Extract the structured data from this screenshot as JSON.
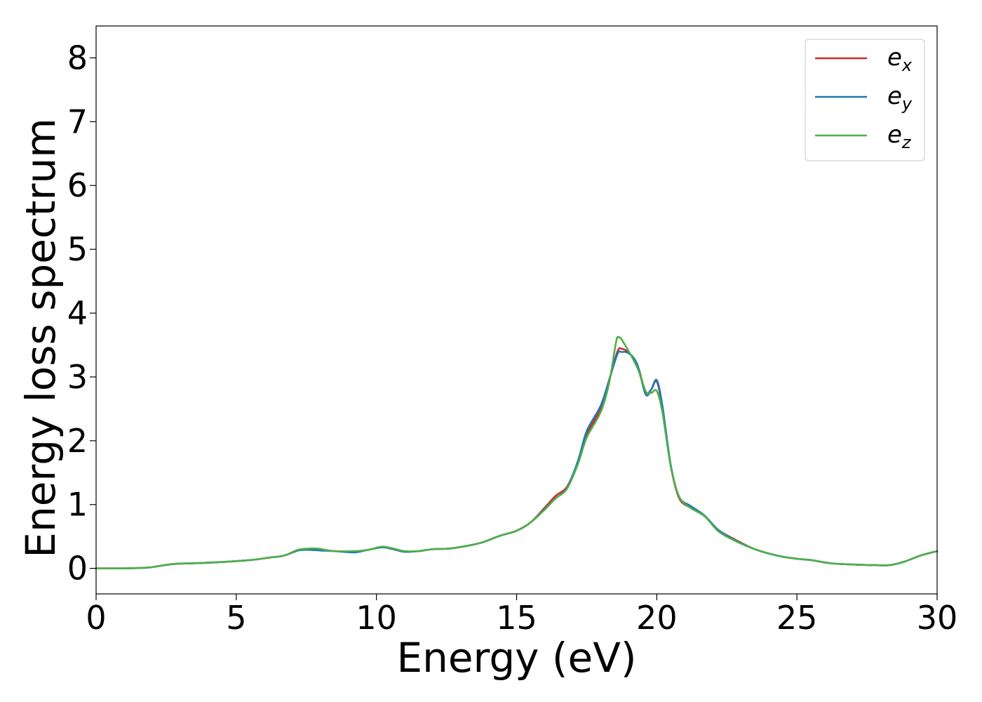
{
  "chart_data": {
    "type": "line",
    "title": "",
    "xlabel": "Energy (eV)",
    "ylabel": "Energy loss spectrum",
    "xlim": [
      0,
      30
    ],
    "ylim": [
      -0.4,
      8.5
    ],
    "xticks": [
      "0",
      "5",
      "10",
      "15",
      "20",
      "25",
      "30"
    ],
    "yticks": [
      "0",
      "1",
      "2",
      "3",
      "4",
      "5",
      "6",
      "7",
      "8"
    ],
    "grid": false,
    "legend_position": "top-right",
    "series": [
      {
        "name": "e_x",
        "label_main": "e",
        "label_sub": "x",
        "color": "#d62728",
        "points": [
          [
            0,
            0
          ],
          [
            1,
            0
          ],
          [
            1.8,
            0.01
          ],
          [
            2.3,
            0.04
          ],
          [
            2.8,
            0.07
          ],
          [
            3.5,
            0.08
          ],
          [
            4.5,
            0.1
          ],
          [
            5.5,
            0.13
          ],
          [
            6.2,
            0.17
          ],
          [
            6.7,
            0.2
          ],
          [
            7.2,
            0.28
          ],
          [
            7.6,
            0.3
          ],
          [
            8,
            0.29
          ],
          [
            8.5,
            0.27
          ],
          [
            9.2,
            0.26
          ],
          [
            9.7,
            0.29
          ],
          [
            10.2,
            0.33
          ],
          [
            10.6,
            0.3
          ],
          [
            11,
            0.26
          ],
          [
            11.5,
            0.27
          ],
          [
            12,
            0.3
          ],
          [
            12.6,
            0.31
          ],
          [
            13.2,
            0.35
          ],
          [
            13.8,
            0.41
          ],
          [
            14.4,
            0.51
          ],
          [
            15,
            0.59
          ],
          [
            15.5,
            0.72
          ],
          [
            16,
            0.95
          ],
          [
            16.4,
            1.14
          ],
          [
            16.8,
            1.28
          ],
          [
            17.2,
            1.68
          ],
          [
            17.5,
            2.1
          ],
          [
            18,
            2.5
          ],
          [
            18.3,
            2.95
          ],
          [
            18.6,
            3.4
          ],
          [
            18.75,
            3.44
          ],
          [
            19,
            3.38
          ],
          [
            19.3,
            3.2
          ],
          [
            19.6,
            2.77
          ],
          [
            19.8,
            2.8
          ],
          [
            20,
            2.93
          ],
          [
            20.2,
            2.5
          ],
          [
            20.5,
            1.6
          ],
          [
            20.8,
            1.1
          ],
          [
            21.2,
            0.95
          ],
          [
            21.7,
            0.82
          ],
          [
            22.2,
            0.6
          ],
          [
            22.8,
            0.45
          ],
          [
            23.5,
            0.3
          ],
          [
            24.3,
            0.2
          ],
          [
            25,
            0.15
          ],
          [
            25.5,
            0.13
          ],
          [
            26.2,
            0.08
          ],
          [
            27,
            0.06
          ],
          [
            27.8,
            0.05
          ],
          [
            28.3,
            0.05
          ],
          [
            28.8,
            0.1
          ],
          [
            29.4,
            0.2
          ],
          [
            30,
            0.27
          ]
        ]
      },
      {
        "name": "e_y",
        "label_main": "e",
        "label_sub": "y",
        "color": "#1f77b4",
        "points": [
          [
            0,
            0
          ],
          [
            1,
            0
          ],
          [
            1.8,
            0.01
          ],
          [
            2.3,
            0.04
          ],
          [
            2.8,
            0.07
          ],
          [
            3.5,
            0.08
          ],
          [
            4.5,
            0.1
          ],
          [
            5.5,
            0.13
          ],
          [
            6.2,
            0.17
          ],
          [
            6.7,
            0.2
          ],
          [
            7.2,
            0.28
          ],
          [
            7.6,
            0.29
          ],
          [
            8,
            0.28
          ],
          [
            8.5,
            0.27
          ],
          [
            9.2,
            0.25
          ],
          [
            9.7,
            0.29
          ],
          [
            10.2,
            0.33
          ],
          [
            10.6,
            0.3
          ],
          [
            11,
            0.26
          ],
          [
            11.5,
            0.27
          ],
          [
            12,
            0.3
          ],
          [
            12.6,
            0.31
          ],
          [
            13.2,
            0.35
          ],
          [
            13.8,
            0.41
          ],
          [
            14.4,
            0.51
          ],
          [
            15,
            0.59
          ],
          [
            15.5,
            0.72
          ],
          [
            16,
            0.93
          ],
          [
            16.4,
            1.1
          ],
          [
            16.8,
            1.26
          ],
          [
            17.2,
            1.7
          ],
          [
            17.5,
            2.15
          ],
          [
            18,
            2.55
          ],
          [
            18.3,
            2.95
          ],
          [
            18.6,
            3.36
          ],
          [
            18.75,
            3.39
          ],
          [
            19,
            3.37
          ],
          [
            19.3,
            3.2
          ],
          [
            19.6,
            2.73
          ],
          [
            19.8,
            2.8
          ],
          [
            20,
            2.95
          ],
          [
            20.2,
            2.55
          ],
          [
            20.5,
            1.62
          ],
          [
            20.8,
            1.12
          ],
          [
            21.2,
            0.98
          ],
          [
            21.7,
            0.83
          ],
          [
            22.2,
            0.6
          ],
          [
            22.8,
            0.44
          ],
          [
            23.5,
            0.3
          ],
          [
            24.3,
            0.2
          ],
          [
            25,
            0.15
          ],
          [
            25.5,
            0.13
          ],
          [
            26.2,
            0.08
          ],
          [
            27,
            0.06
          ],
          [
            27.8,
            0.05
          ],
          [
            28.3,
            0.05
          ],
          [
            28.8,
            0.1
          ],
          [
            29.4,
            0.2
          ],
          [
            30,
            0.27
          ]
        ]
      },
      {
        "name": "e_z",
        "label_main": "e",
        "label_sub": "z",
        "color": "#4daf4a",
        "points": [
          [
            0,
            0
          ],
          [
            1,
            0
          ],
          [
            1.8,
            0.01
          ],
          [
            2.3,
            0.04
          ],
          [
            2.8,
            0.07
          ],
          [
            3.5,
            0.08
          ],
          [
            4.5,
            0.1
          ],
          [
            5.5,
            0.13
          ],
          [
            6.2,
            0.17
          ],
          [
            6.7,
            0.2
          ],
          [
            7.2,
            0.29
          ],
          [
            7.6,
            0.31
          ],
          [
            7.9,
            0.31
          ],
          [
            8.5,
            0.27
          ],
          [
            9.2,
            0.27
          ],
          [
            9.7,
            0.29
          ],
          [
            10.2,
            0.34
          ],
          [
            10.6,
            0.31
          ],
          [
            11,
            0.27
          ],
          [
            11.5,
            0.27
          ],
          [
            12,
            0.3
          ],
          [
            12.6,
            0.31
          ],
          [
            13.2,
            0.35
          ],
          [
            13.8,
            0.41
          ],
          [
            14.4,
            0.51
          ],
          [
            15,
            0.59
          ],
          [
            15.5,
            0.72
          ],
          [
            16,
            0.92
          ],
          [
            16.4,
            1.1
          ],
          [
            16.8,
            1.25
          ],
          [
            17.2,
            1.65
          ],
          [
            17.5,
            2.05
          ],
          [
            18,
            2.45
          ],
          [
            18.3,
            2.9
          ],
          [
            18.55,
            3.55
          ],
          [
            18.65,
            3.62
          ],
          [
            18.8,
            3.55
          ],
          [
            19.3,
            3.15
          ],
          [
            19.6,
            2.78
          ],
          [
            19.8,
            2.75
          ],
          [
            20,
            2.78
          ],
          [
            20.2,
            2.45
          ],
          [
            20.5,
            1.6
          ],
          [
            20.8,
            1.12
          ],
          [
            21.2,
            0.95
          ],
          [
            21.7,
            0.82
          ],
          [
            22.2,
            0.58
          ],
          [
            22.8,
            0.43
          ],
          [
            23.5,
            0.3
          ],
          [
            24.3,
            0.2
          ],
          [
            25,
            0.15
          ],
          [
            25.5,
            0.13
          ],
          [
            26.2,
            0.08
          ],
          [
            27,
            0.06
          ],
          [
            27.8,
            0.05
          ],
          [
            28.3,
            0.05
          ],
          [
            28.8,
            0.1
          ],
          [
            29.4,
            0.2
          ],
          [
            30,
            0.27
          ]
        ]
      }
    ]
  }
}
